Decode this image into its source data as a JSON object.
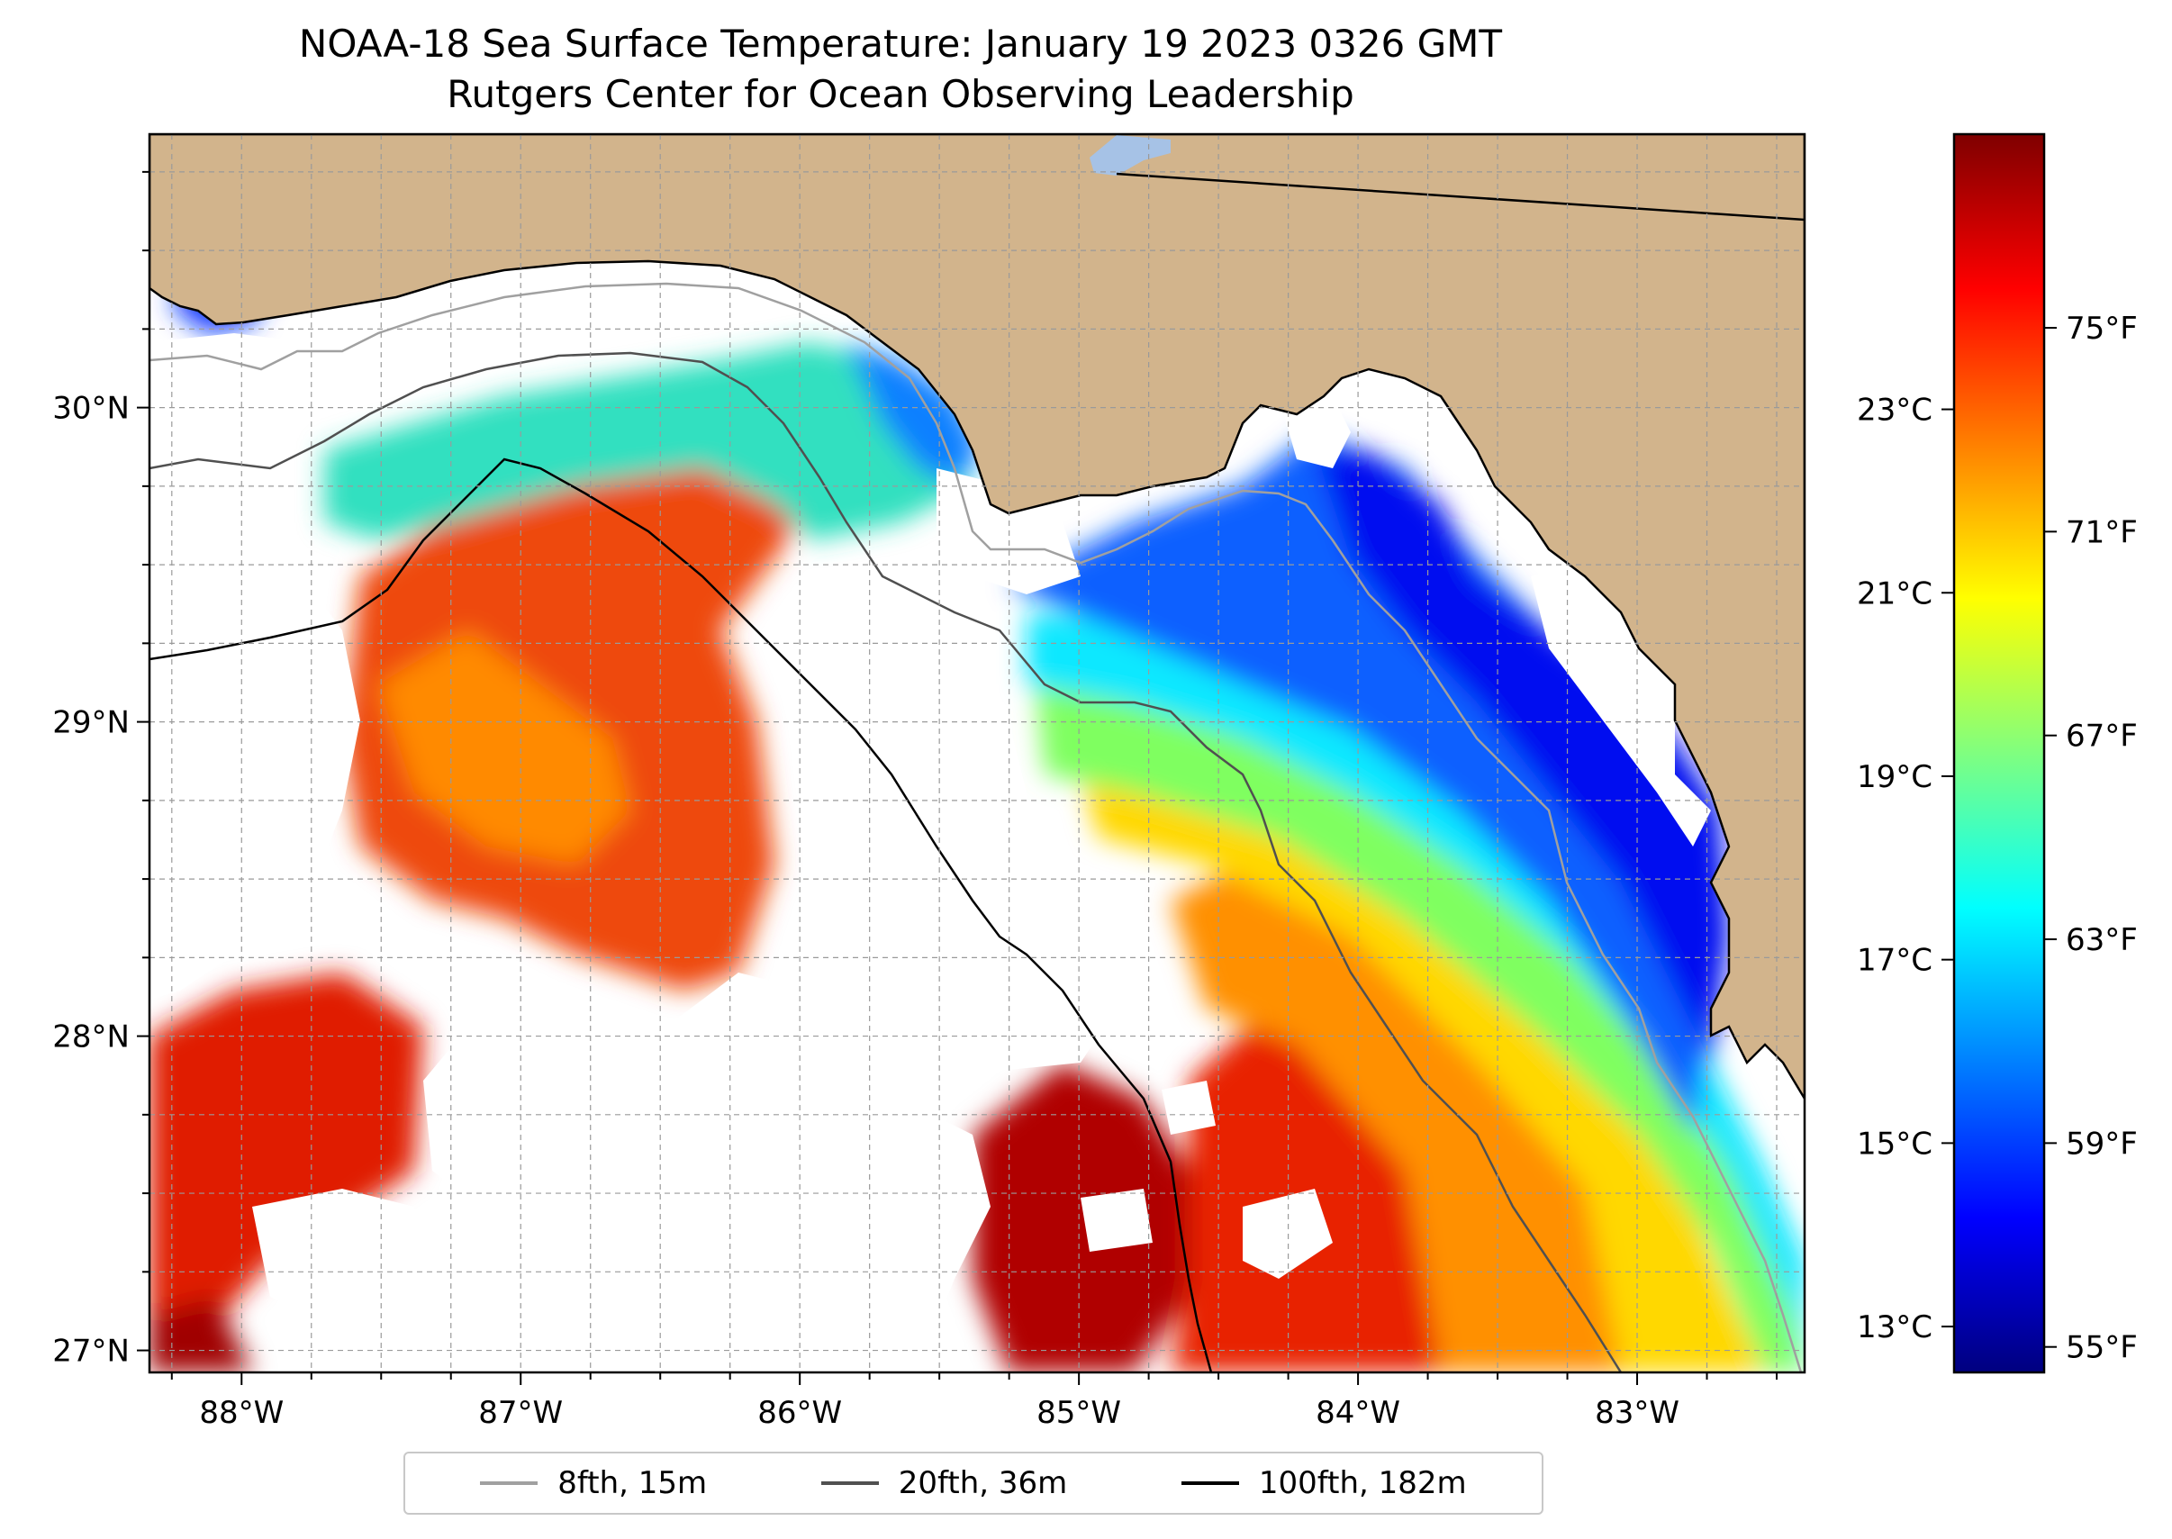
{
  "title": {
    "line1": "NOAA-18 Sea Surface Temperature: January 19 2023 0326 GMT",
    "line2": "Rutgers Center for Ocean Observing Leadership"
  },
  "colors": {
    "land": "#d2b48c",
    "water_missing": "#ffffff",
    "lake": "#a6c2e6",
    "isobath_8": "#a0a0a0",
    "isobath_20": "#505050",
    "isobath_100": "#000000",
    "colormap": "jet"
  },
  "map": {
    "lon_range": [
      -88.33,
      -82.4
    ],
    "lat_range": [
      26.93,
      30.87
    ],
    "lon_ticks": [
      {
        "value": -88,
        "label": "88°W"
      },
      {
        "value": -87,
        "label": "87°W"
      },
      {
        "value": -86,
        "label": "86°W"
      },
      {
        "value": -85,
        "label": "85°W"
      },
      {
        "value": -84,
        "label": "84°W"
      },
      {
        "value": -83,
        "label": "83°W"
      }
    ],
    "lat_ticks": [
      {
        "value": 27,
        "label": "27°N"
      },
      {
        "value": 28,
        "label": "28°N"
      },
      {
        "value": 29,
        "label": "29°N"
      },
      {
        "value": 30,
        "label": "30°N"
      }
    ]
  },
  "colorbar": {
    "range_f": [
      54.5,
      78.8
    ],
    "fahrenheit_ticks": [
      {
        "value": 55,
        "label": "55°F"
      },
      {
        "value": 59,
        "label": "59°F"
      },
      {
        "value": 63,
        "label": "63°F"
      },
      {
        "value": 67,
        "label": "67°F"
      },
      {
        "value": 71,
        "label": "71°F"
      },
      {
        "value": 75,
        "label": "75°F"
      }
    ],
    "celsius_ticks": [
      {
        "value": 13,
        "label": "13°C"
      },
      {
        "value": 15,
        "label": "15°C"
      },
      {
        "value": 17,
        "label": "17°C"
      },
      {
        "value": 19,
        "label": "19°C"
      },
      {
        "value": 21,
        "label": "21°C"
      },
      {
        "value": 23,
        "label": "23°C"
      }
    ]
  },
  "legend": {
    "items": [
      {
        "label": "8fth, 15m"
      },
      {
        "label": "20fth, 36m"
      },
      {
        "label": "100fth, 182m"
      }
    ]
  }
}
